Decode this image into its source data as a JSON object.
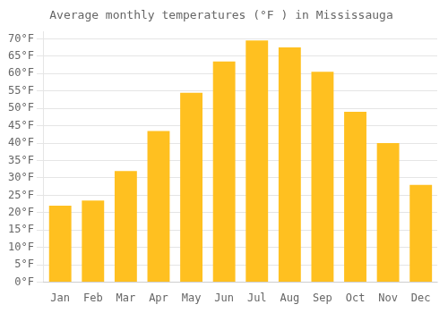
{
  "chart_data": {
    "type": "bar",
    "title": "Average monthly temperatures (°F ) in Mississauga",
    "categories": [
      "Jan",
      "Feb",
      "Mar",
      "Apr",
      "May",
      "Jun",
      "Jul",
      "Aug",
      "Sep",
      "Oct",
      "Nov",
      "Dec"
    ],
    "values": [
      22,
      23.5,
      32,
      43.5,
      54.5,
      63.5,
      69.5,
      67.5,
      60.5,
      49,
      40,
      28
    ],
    "color": "#FFC020",
    "ylim": [
      0,
      72
    ],
    "yticks": [
      {
        "value": 0,
        "label": "0°F"
      },
      {
        "value": 5,
        "label": "5°F"
      },
      {
        "value": 10,
        "label": "10°F"
      },
      {
        "value": 15,
        "label": "15°F"
      },
      {
        "value": 20,
        "label": "20°F"
      },
      {
        "value": 25,
        "label": "25°F"
      },
      {
        "value": 30,
        "label": "30°F"
      },
      {
        "value": 35,
        "label": "35°F"
      },
      {
        "value": 40,
        "label": "40°F"
      },
      {
        "value": 45,
        "label": "45°F"
      },
      {
        "value": 50,
        "label": "50°F"
      },
      {
        "value": 55,
        "label": "55°F"
      },
      {
        "value": 60,
        "label": "60°F"
      },
      {
        "value": 65,
        "label": "65°F"
      },
      {
        "value": 70,
        "label": "70°F"
      }
    ],
    "grid": true
  }
}
